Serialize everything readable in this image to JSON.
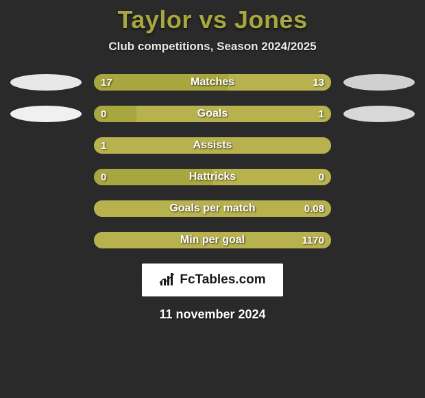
{
  "title": "Taylor vs Jones",
  "subtitle": "Club competitions, Season 2024/2025",
  "colors": {
    "accent": "#a8a63e",
    "bar_bg": "#b7b14e",
    "ellipse_left": "#e8e8e8",
    "ellipse_right": "#d0d0d0",
    "background": "#2a2a2a",
    "brand_bg": "#ffffff",
    "brand_text": "#1a1a1a",
    "text": "#ffffff"
  },
  "rows": [
    {
      "label": "Matches",
      "left_val": "17",
      "right_val": "13",
      "left_pct": 56.7,
      "right_pct": 43.3,
      "left_fill": "#a8a63e",
      "right_fill": "#b7b14e",
      "show_ellipse": true,
      "ellipse_left_color": "#e8e8e8",
      "ellipse_right_color": "#d0d0d0"
    },
    {
      "label": "Goals",
      "left_val": "0",
      "right_val": "1",
      "left_pct": 18,
      "right_pct": 82,
      "left_fill": "#a8a63e",
      "right_fill": "#b7b14e",
      "show_ellipse": true,
      "ellipse_left_color": "#f0f0f0",
      "ellipse_right_color": "#d8d8d8"
    },
    {
      "label": "Assists",
      "left_val": "1",
      "right_val": "",
      "left_pct": 100,
      "right_pct": 0,
      "left_fill": "#b7b14e",
      "right_fill": "#b7b14e",
      "show_ellipse": false
    },
    {
      "label": "Hattricks",
      "left_val": "0",
      "right_val": "0",
      "left_pct": 50,
      "right_pct": 50,
      "left_fill": "#a8a63e",
      "right_fill": "#b7b14e",
      "show_ellipse": false
    },
    {
      "label": "Goals per match",
      "left_val": "",
      "right_val": "0.08",
      "left_pct": 0,
      "right_pct": 100,
      "left_fill": "#b7b14e",
      "right_fill": "#b7b14e",
      "show_ellipse": false
    },
    {
      "label": "Min per goal",
      "left_val": "",
      "right_val": "1170",
      "left_pct": 0,
      "right_pct": 100,
      "left_fill": "#b7b14e",
      "right_fill": "#b7b14e",
      "show_ellipse": false
    }
  ],
  "brand": "FcTables.com",
  "date": "11 november 2024"
}
